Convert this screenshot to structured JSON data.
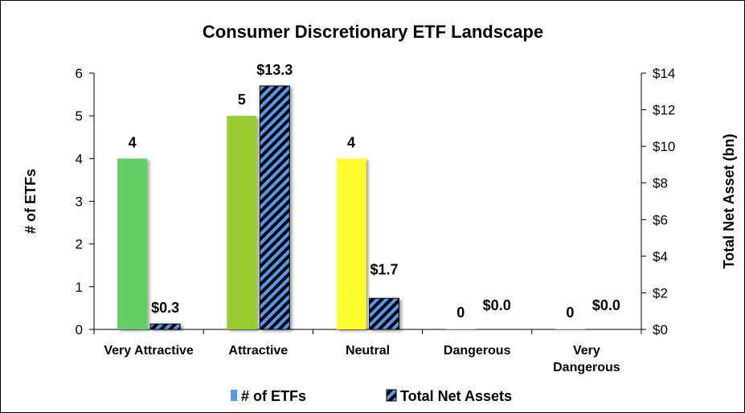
{
  "chart_data": {
    "type": "bar",
    "title": "Consumer Discretionary ETF Landscape",
    "categories": [
      [
        "Very Attractive"
      ],
      [
        "Attractive"
      ],
      [
        "Neutral"
      ],
      [
        "Dangerous"
      ],
      [
        "Very",
        "Dangerous"
      ]
    ],
    "left_axis": {
      "title": "# of ETFs",
      "ylim": [
        0,
        6
      ],
      "ticks": [
        "0",
        "1",
        "2",
        "3",
        "4",
        "5",
        "6"
      ]
    },
    "right_axis": {
      "title": "Total Net Asset (bn)",
      "ylim": [
        0,
        14
      ],
      "ticks": [
        "$0",
        "$2",
        "$4",
        "$6",
        "$8",
        "$10",
        "$12",
        "$14"
      ]
    },
    "series": [
      {
        "name": "# of ETFs",
        "axis": "left",
        "values": [
          4,
          5,
          4,
          0,
          0
        ],
        "labels": [
          "4",
          "5",
          "4",
          "0",
          "0"
        ],
        "colors": [
          "#66CC66",
          "#99CC33",
          "#FFFF33",
          "#CCCCCC",
          "#CCCCCC"
        ],
        "legend_color": "#5599EE"
      },
      {
        "name": "Total Net Assets",
        "axis": "right",
        "values": [
          0.3,
          13.3,
          1.7,
          0.0,
          0.0
        ],
        "labels": [
          "$0.3",
          "$13.3",
          "$1.7",
          "$0.0",
          "$0.0"
        ],
        "pattern_colors": [
          "#000000",
          "#5599EE"
        ]
      }
    ],
    "grid": false,
    "legend_position": "bottom"
  }
}
